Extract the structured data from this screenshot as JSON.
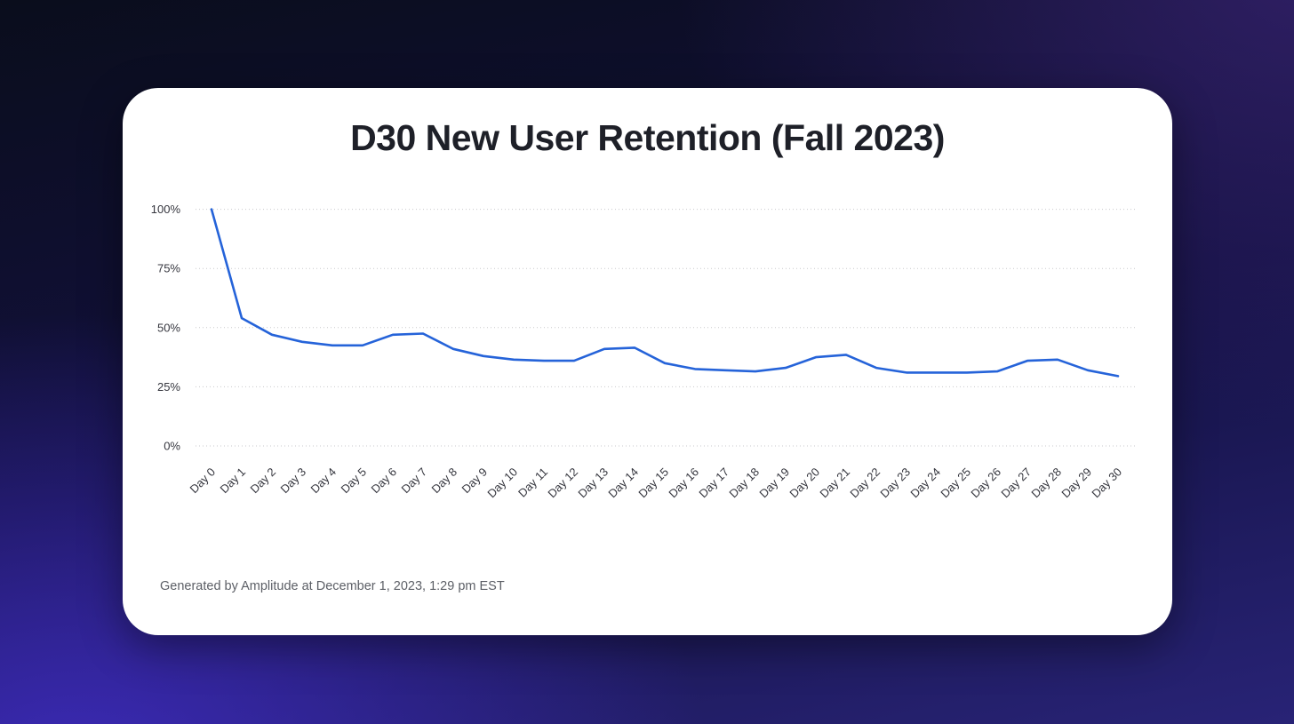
{
  "page": {
    "background_colors": {
      "top_left": "#0a0d1c",
      "top_right": "#2a1b59",
      "bottom_left": "#3122a6",
      "bottom_right": "#292a7d"
    }
  },
  "card": {
    "title": "D30 New User Retention (Fall 2023)",
    "footer": "Generated by Amplitude at December 1, 2023, 1:29 pm EST",
    "background": "#ffffff"
  },
  "colors": {
    "line": "#2563d9",
    "grid": "#c9c9cc",
    "axis_text": "#35363e",
    "title_text": "#1e2028",
    "footer_text": "#5c5f66"
  },
  "chart_data": {
    "type": "line",
    "title": "D30 New User Retention (Fall 2023)",
    "xlabel": "",
    "ylabel": "",
    "x_labels": [
      "Day 0",
      "Day 1",
      "Day 2",
      "Day 3",
      "Day 4",
      "Day 5",
      "Day 6",
      "Day 7",
      "Day 8",
      "Day 9",
      "Day 10",
      "Day 11",
      "Day 12",
      "Day 13",
      "Day 14",
      "Day 15",
      "Day 16",
      "Day 17",
      "Day 18",
      "Day 19",
      "Day 20",
      "Day 21",
      "Day 22",
      "Day 23",
      "Day 24",
      "Day 25",
      "Day 26",
      "Day 27",
      "Day 28",
      "Day 29",
      "Day 30"
    ],
    "values": [
      100,
      54,
      47,
      44,
      42.5,
      42.5,
      47,
      47.5,
      41,
      38,
      36.5,
      36,
      36,
      41,
      41.5,
      35,
      32.5,
      32,
      31.5,
      33,
      37.5,
      38.5,
      33,
      31,
      31,
      31,
      31.5,
      36,
      36.5,
      32,
      29.5
    ],
    "ylim": [
      0,
      100
    ],
    "yticks": [
      0,
      25,
      50,
      75,
      100
    ],
    "ytick_format": "{v}%",
    "grid": "horizontal-dotted",
    "legend": "none"
  }
}
